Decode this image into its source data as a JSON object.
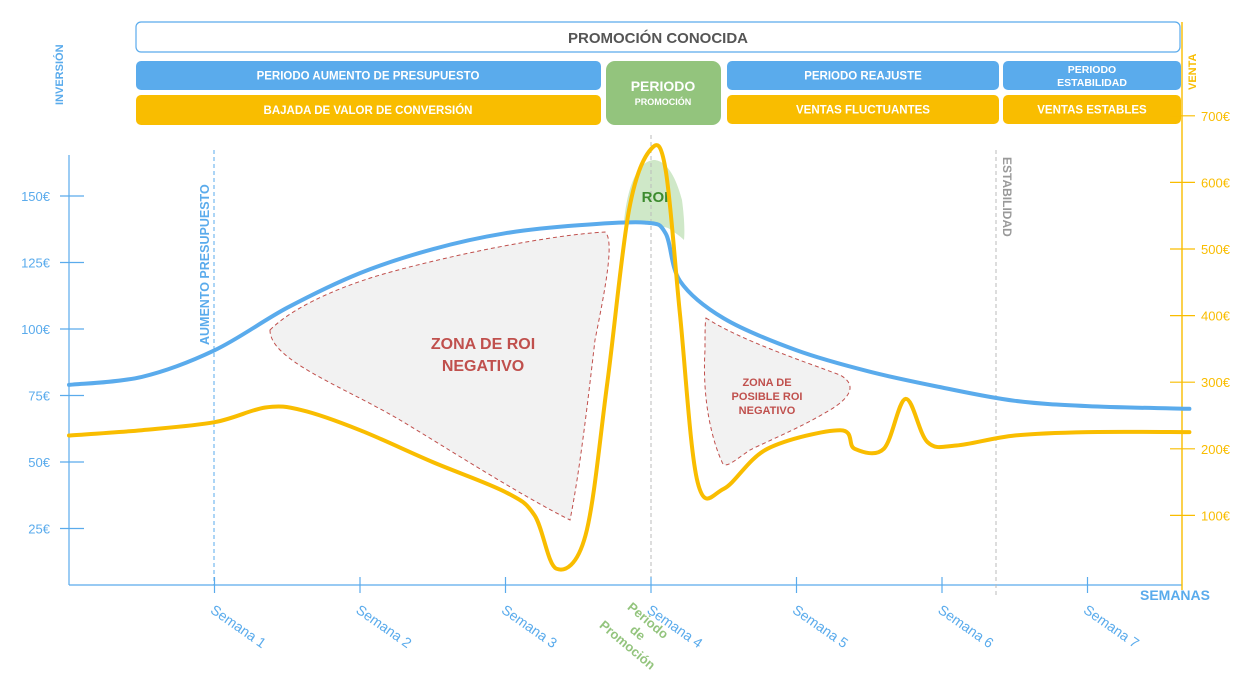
{
  "banners": {
    "top": "PROMOCIÓN CONOCIDA",
    "blue_1": "PERIODO AUMENTO DE PRESUPUESTO",
    "blue_2": "PERIODO REAJUSTE",
    "blue_3_line1": "PERIODO",
    "blue_3_line2": "ESTABILIDAD",
    "yellow_1": "BAJADA DE VALOR DE CONVERSIÓN",
    "yellow_2": "VENTAS FLUCTUANTES",
    "yellow_3": "VENTAS ESTABLES",
    "green_line1": "PERIODO",
    "green_line2": "PROMOCIÓN"
  },
  "markers": {
    "aumento": "AUMENTO PRESUPUESTO",
    "estabilidad": "ESTABILIDAD",
    "promo_line1": "Periodo",
    "promo_line2": "de",
    "promo_line3": "Promoción"
  },
  "zones": {
    "roi": "ROI",
    "negative_line1": "ZONA DE ROI",
    "negative_line2": "NEGATIVO",
    "possible_line1": "ZONA DE",
    "possible_line2": "POSIBLE ROI",
    "possible_line3": "NEGATIVO"
  },
  "colors": {
    "blue": "#5aabec",
    "yellow": "#f9bd00",
    "green": "#93c47d",
    "green_dark": "#3d8b2f",
    "zone_red": "#c0504d",
    "zone_fill": "#f2f2f2",
    "gray": "#999999"
  },
  "chart_data": {
    "type": "line",
    "x_label": "SEMANAS",
    "categories": [
      "Semana 1",
      "Semana 2",
      "Semana 3",
      "Semana 4",
      "Semana 5",
      "Semana 6",
      "Semana 7"
    ],
    "y_left": {
      "label": "INVERSIÓN",
      "ticks": [
        "25€",
        "50€",
        "75€",
        "100€",
        "125€",
        "150€"
      ],
      "tick_values": [
        25,
        50,
        75,
        100,
        125,
        150
      ]
    },
    "y_right": {
      "label": "VENTA",
      "ticks": [
        "100€",
        "200€",
        "300€",
        "400€",
        "500€",
        "600€",
        "700€"
      ],
      "tick_values": [
        100,
        200,
        300,
        400,
        500,
        600,
        700
      ]
    },
    "series": [
      {
        "name": "INVERSIÓN",
        "axis": "left",
        "points": [
          [
            0,
            79
          ],
          [
            0.5,
            82
          ],
          [
            1,
            92
          ],
          [
            1.5,
            108
          ],
          [
            2,
            121
          ],
          [
            2.5,
            130
          ],
          [
            3,
            136
          ],
          [
            3.5,
            139
          ],
          [
            3.96,
            140
          ],
          [
            4.1,
            136
          ],
          [
            4.2,
            118
          ],
          [
            4.5,
            104
          ],
          [
            5,
            92
          ],
          [
            5.5,
            84
          ],
          [
            6,
            78
          ],
          [
            6.5,
            73
          ],
          [
            7,
            71
          ],
          [
            7.7,
            70
          ]
        ]
      },
      {
        "name": "VENTA",
        "axis": "right",
        "points": [
          [
            0,
            220
          ],
          [
            0.5,
            228
          ],
          [
            1,
            240
          ],
          [
            1.35,
            262
          ],
          [
            1.6,
            258
          ],
          [
            2,
            228
          ],
          [
            2.5,
            180
          ],
          [
            3,
            135
          ],
          [
            3.2,
            100
          ],
          [
            3.35,
            20
          ],
          [
            3.55,
            70
          ],
          [
            3.7,
            300
          ],
          [
            3.85,
            560
          ],
          [
            4.0,
            650
          ],
          [
            4.1,
            620
          ],
          [
            4.2,
            400
          ],
          [
            4.32,
            150
          ],
          [
            4.5,
            140
          ],
          [
            4.8,
            200
          ],
          [
            5.3,
            228
          ],
          [
            5.4,
            200
          ],
          [
            5.6,
            200
          ],
          [
            5.75,
            275
          ],
          [
            5.9,
            210
          ],
          [
            6.1,
            205
          ],
          [
            6.5,
            220
          ],
          [
            7,
            225
          ],
          [
            7.7,
            225
          ]
        ]
      }
    ]
  }
}
